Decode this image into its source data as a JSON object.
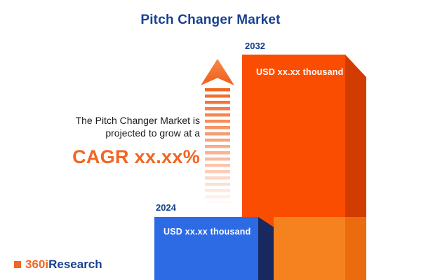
{
  "title": "Pitch Changer Market",
  "description": {
    "line1": "The Pitch Changer Market is",
    "line2": "projected to grow at a",
    "cagr": "CAGR xx.xx%"
  },
  "logo": {
    "prefix": "360i",
    "suffix": "Research"
  },
  "chart_data": {
    "type": "bar",
    "title": "Pitch Changer Market",
    "categories": [
      "2024",
      "2032"
    ],
    "values": [
      "xx.xx",
      "xx.xx"
    ],
    "unit": "USD thousand",
    "value_labels": [
      "USD xx.xx thousand",
      "USD xx.xx thousand"
    ],
    "bars": [
      {
        "year": "2024",
        "label": "USD xx.xx thousand",
        "color": "#2D6BE5",
        "side_color": "#17295F"
      },
      {
        "year": "2032",
        "label": "USD xx.xx thousand",
        "color": "#FB4D01",
        "side_color": "#D33C00"
      }
    ],
    "annotation": "The Pitch Changer Market is projected to grow at a CAGR xx.xx%",
    "legend_position": "none",
    "grid": false
  },
  "colors": {
    "title_navy": "#17418E",
    "accent_orange": "#F26522",
    "bar_blue": "#2D6BE5",
    "bar_orange": "#FB4D01"
  }
}
